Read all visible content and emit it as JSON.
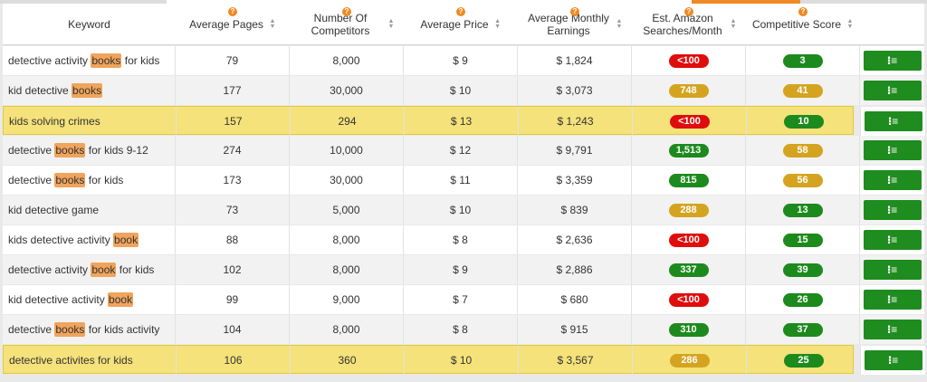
{
  "header": {
    "columns": [
      {
        "label": "Keyword",
        "help": false,
        "sort": false
      },
      {
        "label": "Average Pages",
        "help": true,
        "sort": true
      },
      {
        "label": "Number Of Competitors",
        "help": true,
        "sort": true
      },
      {
        "label": "Average Price",
        "help": true,
        "sort": true
      },
      {
        "label": "Average Monthly Earnings",
        "help": true,
        "sort": true
      },
      {
        "label": "Est. Amazon Searches/Month",
        "help": true,
        "sort": true
      },
      {
        "label": "Competitive Score",
        "help": true,
        "sort": true
      }
    ],
    "help_glyph": "?",
    "sort_up_glyph": "▲",
    "sort_down_glyph": "▼"
  },
  "colors": {
    "row_even": "#ffffff",
    "row_odd": "#f2f2f2",
    "row_highlight": "#f5e27a",
    "row_highlight_border": "#e3c93a",
    "keyword_highlight": "#f0a45c",
    "pill_red": "#e00d0d",
    "pill_green": "#1d8a1d",
    "pill_yellow": "#d4a420",
    "action_green": "#1e8c1e",
    "accent_orange": "#f08a24"
  },
  "action_icon": "list-icon",
  "action_glyph": "⁝≡",
  "rows": [
    {
      "keyword": [
        "detective activity ",
        {
          "hl": "books"
        },
        " for kids"
      ],
      "pages": "79",
      "competitors": "8,000",
      "price": "$ 9",
      "earnings": "$ 1,824",
      "searches": "<100",
      "searches_color": "red",
      "score": "3",
      "score_color": "green",
      "highlighted": false
    },
    {
      "keyword": [
        "kid detective ",
        {
          "hl": "books"
        }
      ],
      "pages": "177",
      "competitors": "30,000",
      "price": "$ 10",
      "earnings": "$ 3,073",
      "searches": "748",
      "searches_color": "yellow",
      "score": "41",
      "score_color": "yellow",
      "highlighted": false
    },
    {
      "keyword": [
        "kids solving crimes"
      ],
      "pages": "157",
      "competitors": "294",
      "price": "$ 13",
      "earnings": "$ 1,243",
      "searches": "<100",
      "searches_color": "red",
      "score": "10",
      "score_color": "green",
      "highlighted": true
    },
    {
      "keyword": [
        "detective ",
        {
          "hl": "books"
        },
        " for kids 9-12"
      ],
      "pages": "274",
      "competitors": "10,000",
      "price": "$ 12",
      "earnings": "$ 9,791",
      "searches": "1,513",
      "searches_color": "green",
      "score": "58",
      "score_color": "yellow",
      "highlighted": false
    },
    {
      "keyword": [
        "detective ",
        {
          "hl": "books"
        },
        " for kids"
      ],
      "pages": "173",
      "competitors": "30,000",
      "price": "$ 11",
      "earnings": "$ 3,359",
      "searches": "815",
      "searches_color": "green",
      "score": "56",
      "score_color": "yellow",
      "highlighted": false
    },
    {
      "keyword": [
        "kid detective game"
      ],
      "pages": "73",
      "competitors": "5,000",
      "price": "$ 10",
      "earnings": "$ 839",
      "searches": "288",
      "searches_color": "yellow",
      "score": "13",
      "score_color": "green",
      "highlighted": false
    },
    {
      "keyword": [
        "kids detective activity ",
        {
          "hl": "book"
        }
      ],
      "pages": "88",
      "competitors": "8,000",
      "price": "$ 8",
      "earnings": "$ 2,636",
      "searches": "<100",
      "searches_color": "red",
      "score": "15",
      "score_color": "green",
      "highlighted": false
    },
    {
      "keyword": [
        "detective activity ",
        {
          "hl": "book"
        },
        " for kids"
      ],
      "pages": "102",
      "competitors": "8,000",
      "price": "$ 9",
      "earnings": "$ 2,886",
      "searches": "337",
      "searches_color": "green",
      "score": "39",
      "score_color": "green",
      "highlighted": false
    },
    {
      "keyword": [
        "kid detective activity ",
        {
          "hl": "book"
        }
      ],
      "pages": "99",
      "competitors": "9,000",
      "price": "$ 7",
      "earnings": "$ 680",
      "searches": "<100",
      "searches_color": "red",
      "score": "26",
      "score_color": "green",
      "highlighted": false
    },
    {
      "keyword": [
        "detective ",
        {
          "hl": "books"
        },
        " for kids activity"
      ],
      "pages": "104",
      "competitors": "8,000",
      "price": "$ 8",
      "earnings": "$ 915",
      "searches": "310",
      "searches_color": "green",
      "score": "37",
      "score_color": "green",
      "highlighted": false
    },
    {
      "keyword": [
        "detective activites for kids"
      ],
      "pages": "106",
      "competitors": "360",
      "price": "$ 10",
      "earnings": "$ 3,567",
      "searches": "286",
      "searches_color": "yellow",
      "score": "25",
      "score_color": "green",
      "highlighted": true
    }
  ]
}
